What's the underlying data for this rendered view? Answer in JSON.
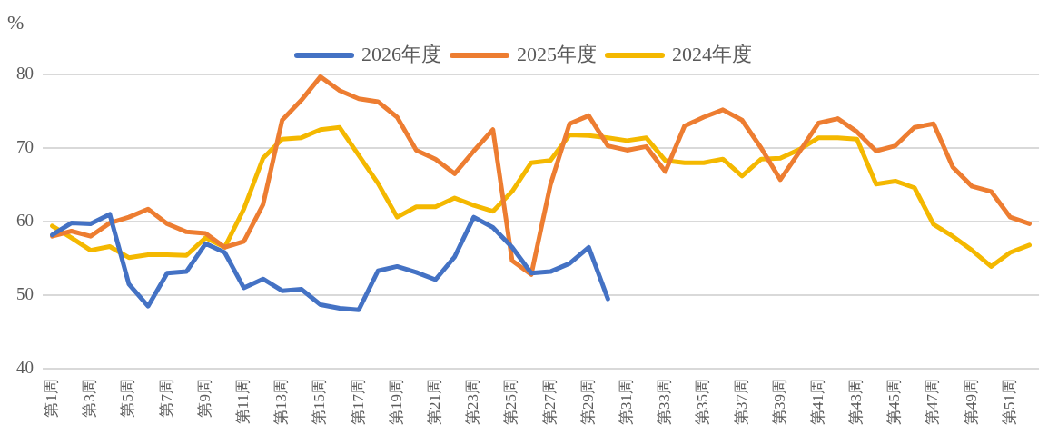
{
  "chart_data": {
    "type": "line",
    "ylabel": "%",
    "categories": [
      "第1周",
      null,
      "第3周",
      null,
      "第5周",
      null,
      "第7周",
      null,
      "第9周",
      null,
      "第11周",
      null,
      "第13周",
      null,
      "第15周",
      null,
      "第17周",
      null,
      "第19周",
      null,
      "第21周",
      null,
      "第23周",
      null,
      "第25周",
      null,
      "第27周",
      null,
      "第29周",
      null,
      "第31周",
      null,
      "第33周",
      null,
      "第35周",
      null,
      "第37周",
      null,
      "第39周",
      null,
      "第41周",
      null,
      "第43周",
      null,
      "第45周",
      null,
      "第47周",
      null,
      "第49周",
      null,
      "第51周",
      null
    ],
    "series": [
      {
        "name": "2026年度",
        "color": "#4472c4",
        "values": [
          58.2,
          59.8,
          59.7,
          61.0,
          51.5,
          48.5,
          53.0,
          53.2,
          57.0,
          55.8,
          51.0,
          52.2,
          50.6,
          50.8,
          48.7,
          48.2,
          48.0,
          53.3,
          53.9,
          53.1,
          52.1,
          55.2,
          60.6,
          59.2,
          56.5,
          53.0,
          53.2,
          54.3,
          56.5,
          49.5,
          null,
          null,
          null,
          null,
          null,
          null,
          null,
          null,
          null,
          null,
          null,
          null,
          null,
          null,
          null,
          null,
          null,
          null,
          null,
          null,
          null,
          null
        ]
      },
      {
        "name": "2025年度",
        "color": "#ed7d31",
        "values": [
          58.0,
          58.7,
          58.0,
          59.8,
          60.6,
          61.7,
          59.7,
          58.6,
          58.4,
          56.5,
          57.3,
          62.3,
          73.8,
          76.5,
          79.7,
          77.8,
          76.7,
          76.3,
          74.2,
          69.7,
          68.5,
          66.5,
          69.6,
          72.5,
          54.7,
          52.8,
          65.0,
          73.3,
          74.4,
          70.3,
          69.7,
          70.2,
          66.8,
          73.0,
          74.2,
          75.2,
          73.8,
          70.0,
          65.7,
          69.5,
          73.4,
          74.0,
          72.2,
          69.6,
          70.3,
          72.8,
          73.3,
          67.4,
          64.8,
          64.1,
          60.6,
          59.7
        ]
      },
      {
        "name": "2024年度",
        "color": "#f4b800",
        "values": [
          59.4,
          57.8,
          56.1,
          56.6,
          55.1,
          55.5,
          55.5,
          55.4,
          57.8,
          56.5,
          61.7,
          68.6,
          71.2,
          71.4,
          72.5,
          72.8,
          69.0,
          65.2,
          60.6,
          62.0,
          62.0,
          63.2,
          62.2,
          61.4,
          64.1,
          68.0,
          68.3,
          71.8,
          71.7,
          71.4,
          71.0,
          71.4,
          68.3,
          68.0,
          68.0,
          68.5,
          66.2,
          68.5,
          68.6,
          69.8,
          71.4,
          71.4,
          71.2,
          65.1,
          65.5,
          64.6,
          59.6,
          58.0,
          56.1,
          53.9,
          55.8,
          56.8
        ]
      }
    ],
    "ylim": [
      40,
      80
    ],
    "yticks": [
      40,
      50,
      60,
      70,
      80
    ],
    "grid": "y",
    "legend": "top",
    "marker": "none",
    "line_style": "solid"
  }
}
